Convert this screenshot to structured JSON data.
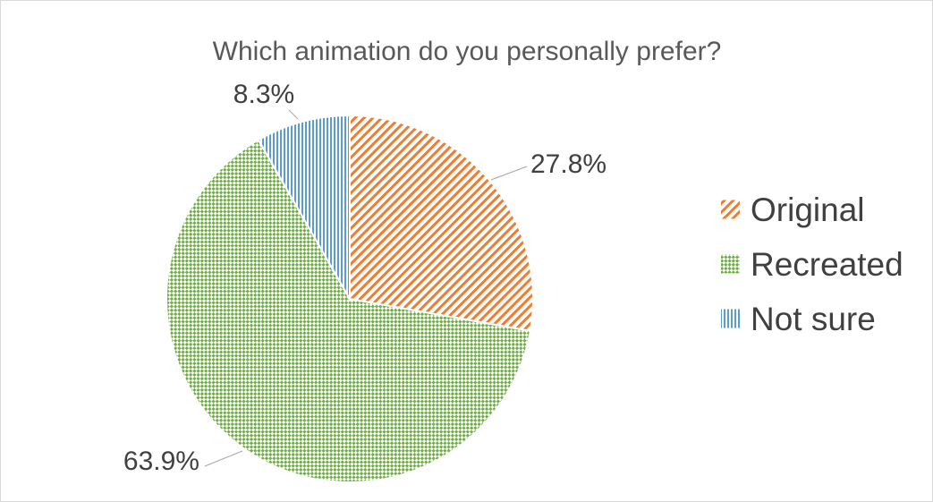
{
  "colors": {
    "Original": "#ED7D31",
    "Recreated": "#70AD47",
    "Not sure": "#5B9BD5",
    "text": "#404040",
    "title": "#595959",
    "leader": "#a6a6a6"
  },
  "chart_data": {
    "type": "pie",
    "title": "Which animation do you personally prefer?",
    "categories": [
      "Original",
      "Recreated",
      "Not sure"
    ],
    "values": [
      27.8,
      63.9,
      8.3
    ],
    "data_labels": [
      "27.8%",
      "63.9%",
      "8.3%"
    ],
    "patterns": [
      "diagonal-stripes",
      "checkerboard",
      "vertical-stripes"
    ],
    "start_angle": 0,
    "direction": "clockwise",
    "legend": {
      "position": "right",
      "items": [
        "Original",
        "Recreated",
        "Not sure"
      ]
    }
  }
}
